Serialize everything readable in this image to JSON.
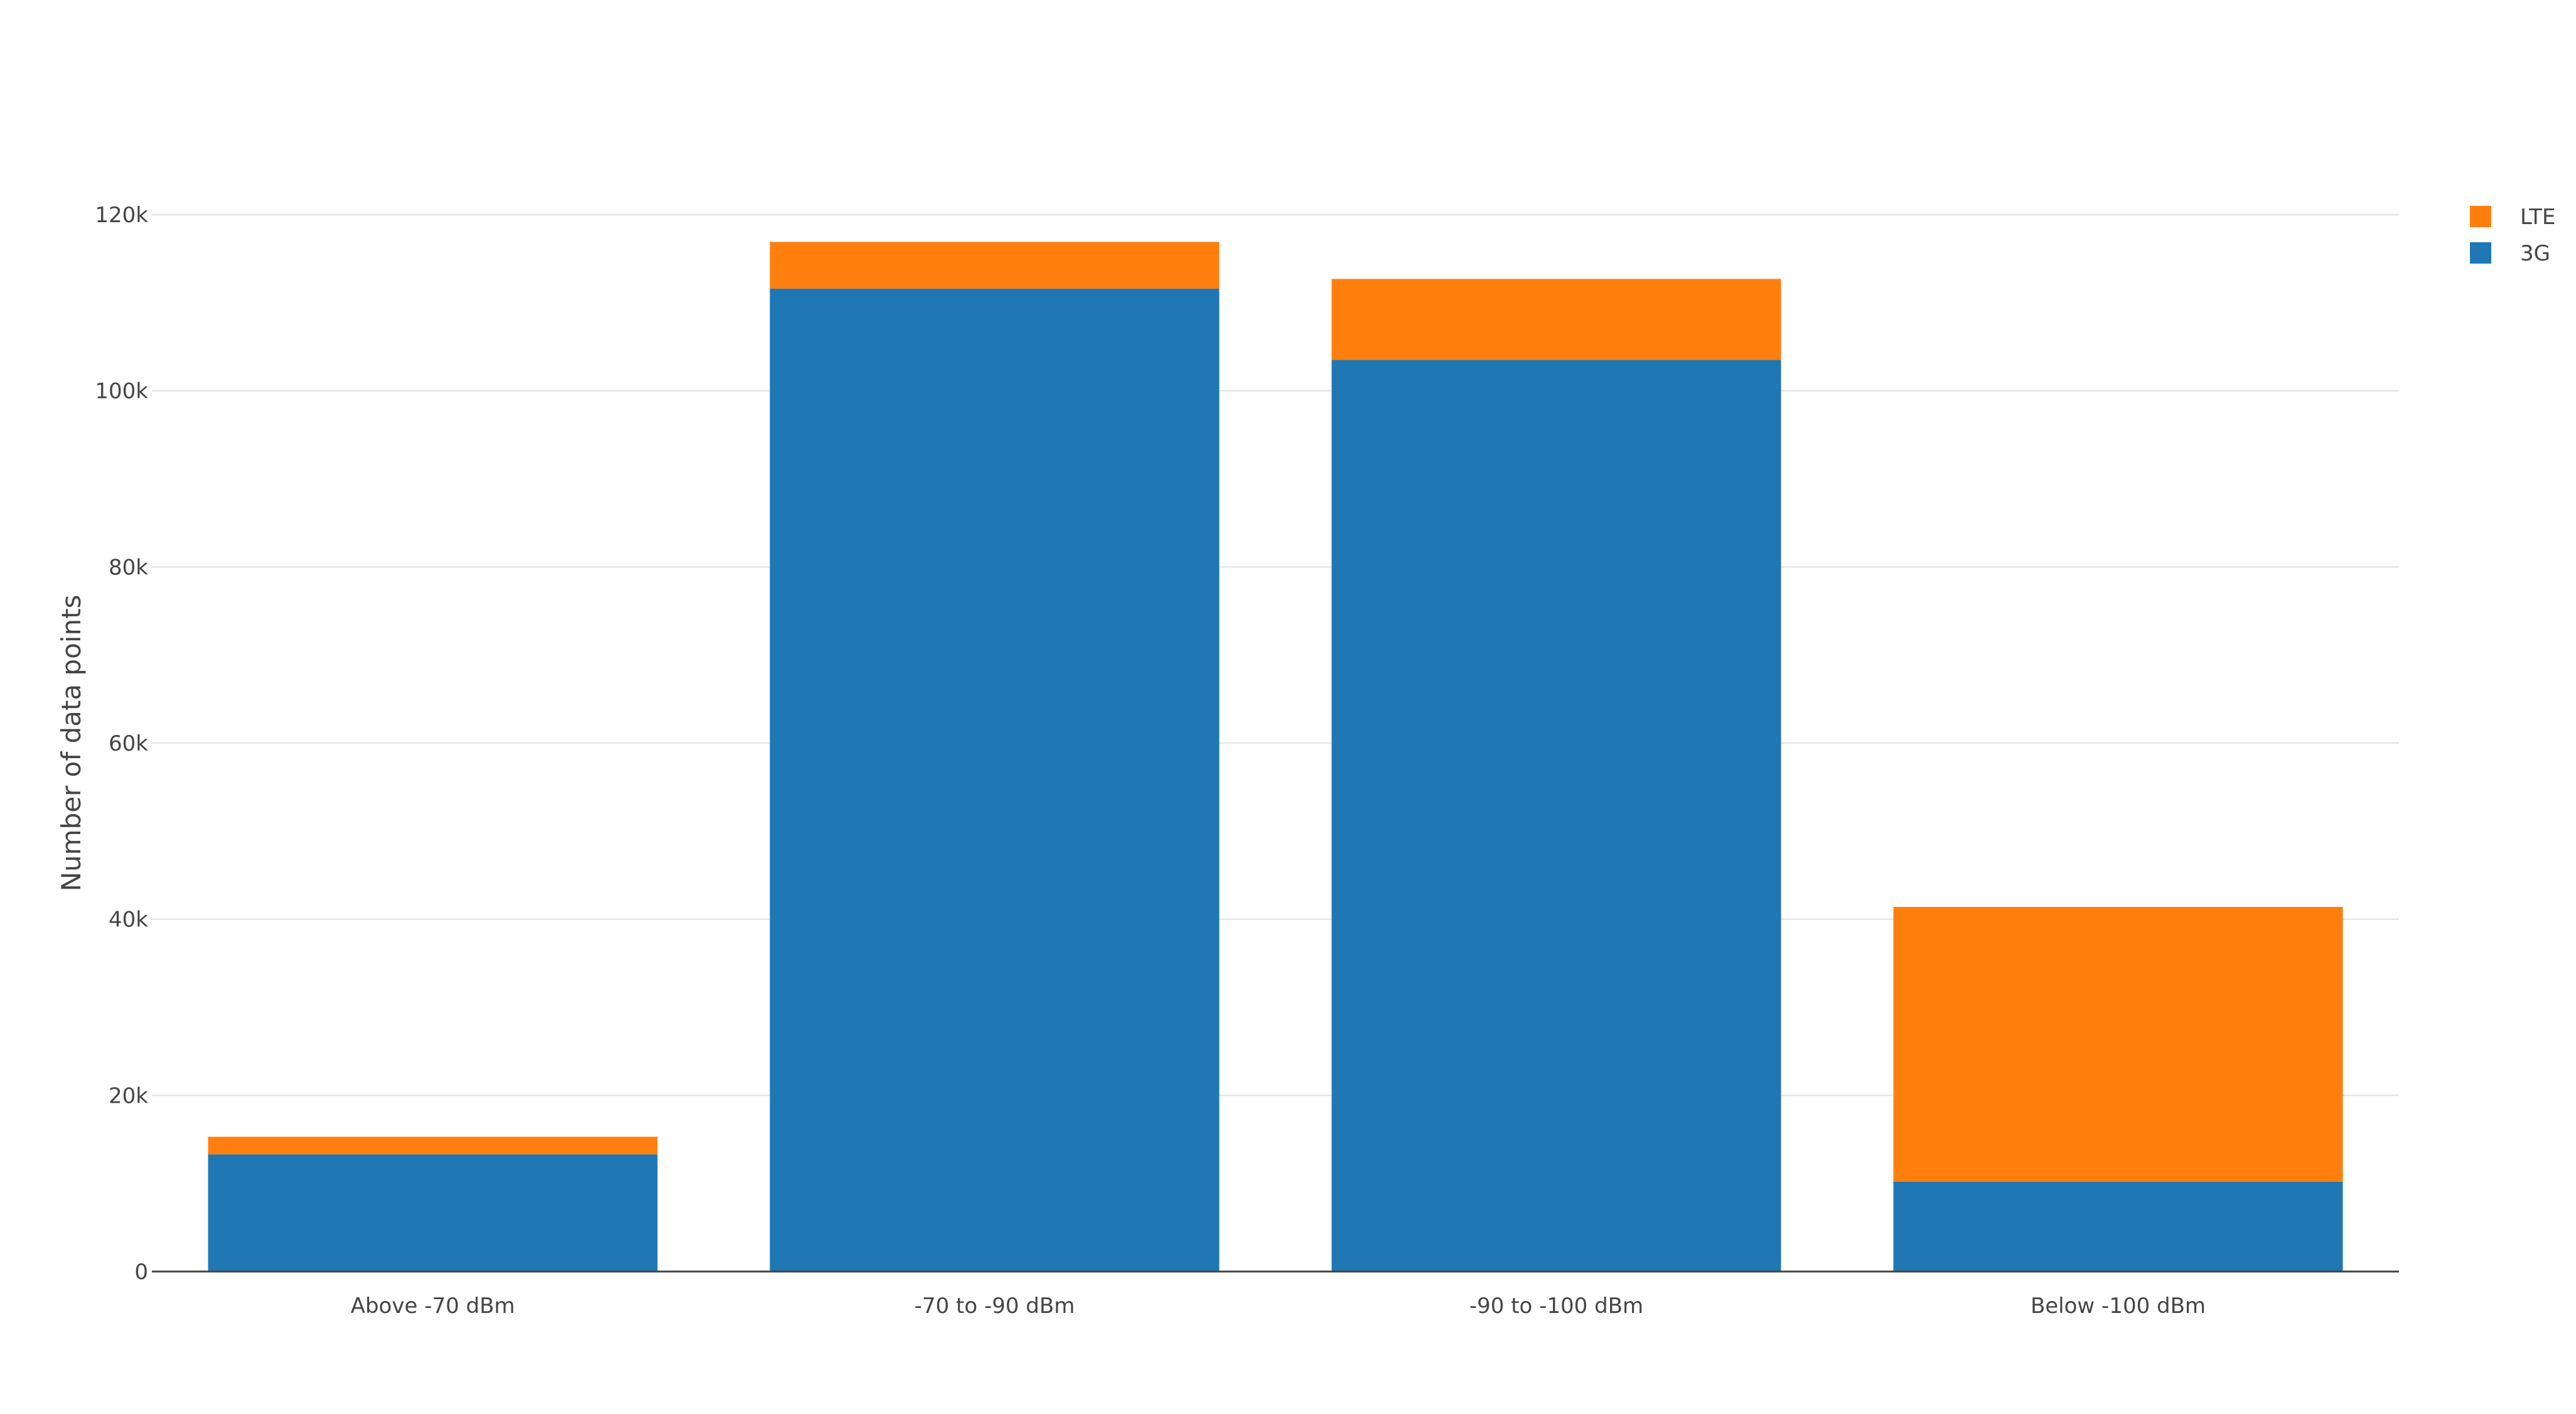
{
  "chart_data": {
    "type": "bar",
    "barmode": "stack",
    "categories": [
      "Above -70 dBm",
      "-70 to -90 dBm",
      "-90 to -100 dBm",
      "Below -100 dBm"
    ],
    "series": [
      {
        "name": "3G",
        "color": "#1f77b4",
        "values": [
          13300,
          111600,
          103500,
          10200
        ]
      },
      {
        "name": "LTE",
        "color": "#ff7f0e",
        "values": [
          2000,
          5300,
          9200,
          31200
        ]
      }
    ],
    "ylabel": "Number of data points",
    "xlabel": "",
    "ylim": [
      0,
      120000
    ],
    "yticks": [
      0,
      20000,
      40000,
      60000,
      80000,
      100000,
      120000
    ],
    "ytick_labels": [
      "0",
      "20k",
      "40k",
      "60k",
      "80k",
      "100k",
      "120k"
    ],
    "grid": true,
    "legend": {
      "position": "top-right",
      "order": [
        "LTE",
        "3G"
      ]
    }
  }
}
